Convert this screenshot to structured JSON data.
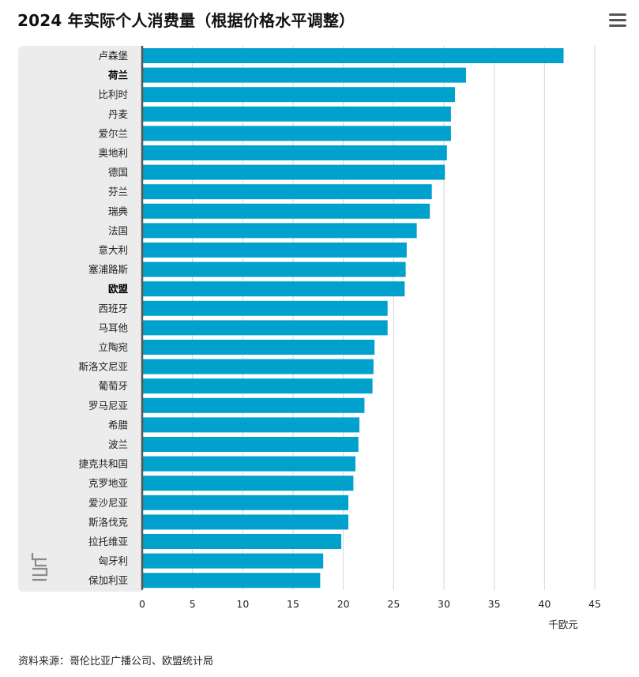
{
  "title": "2024 年实际个人消费量（根据价格水平调整）",
  "menu_icon": "hamburger-menu-icon",
  "source_text": "资料来源：哥伦比亚广播公司、欧盟统计局",
  "colors": {
    "bar": "#00a1cd",
    "panel": "#ececec",
    "gridline": "#d6d6d6",
    "axis": "#555555"
  },
  "chart_data": {
    "type": "bar",
    "orientation": "horizontal",
    "categories": [
      "卢森堡",
      "荷兰",
      "比利时",
      "丹麦",
      "爱尔兰",
      "奥地利",
      "德国",
      "芬兰",
      "瑞典",
      "法国",
      "意大利",
      "塞浦路斯",
      "欧盟",
      "西班牙",
      "马耳他",
      "立陶宛",
      "斯洛文尼亚",
      "葡萄牙",
      "罗马尼亚",
      "希腊",
      "波兰",
      "捷克共和国",
      "克罗地亚",
      "爱沙尼亚",
      "斯洛伐克",
      "拉托维亚",
      "匈牙利",
      "保加利亚"
    ],
    "highlighted": [
      "荷兰",
      "欧盟"
    ],
    "values": [
      41.9,
      32.2,
      31.1,
      30.7,
      30.7,
      30.3,
      30.1,
      28.8,
      28.6,
      27.3,
      26.3,
      26.2,
      26.1,
      24.4,
      24.4,
      23.1,
      23.0,
      22.9,
      22.1,
      21.6,
      21.5,
      21.2,
      21.0,
      20.5,
      20.5,
      19.8,
      18.0,
      17.7
    ],
    "xlabel": "千欧元",
    "xlim": [
      0,
      45
    ],
    "xticks": [
      0,
      5,
      10,
      15,
      20,
      25,
      30,
      35,
      40,
      45
    ],
    "grid": true
  }
}
